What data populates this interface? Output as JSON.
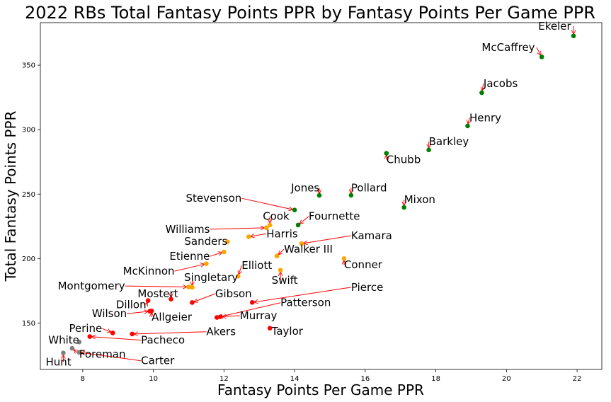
{
  "chart_data": {
    "type": "scatter",
    "title": "2022 RBs Total Fantasy Points PPR by Fantasy Points Per Game PPR",
    "xlabel": "Fantasy Points Per Game PPR",
    "ylabel": "Total Fantasy Points PPR",
    "xlim": [
      6.8,
      22.7
    ],
    "ylim": [
      114,
      383
    ],
    "xticks": [
      8,
      10,
      12,
      14,
      16,
      18,
      20,
      22
    ],
    "yticks": [
      150,
      200,
      250,
      300,
      350
    ],
    "grid": false,
    "colors": {
      "green": "#008000",
      "orange": "#ffa500",
      "red": "#ff0000",
      "gray": "#808080",
      "arrow": "#ff0000"
    },
    "points": [
      {
        "name": "Ekeler",
        "x": 21.9,
        "y": 372.7,
        "color": "green",
        "lx": 20.9,
        "ly": 377.5,
        "anchor": "start"
      },
      {
        "name": "McCaffrey",
        "x": 21.0,
        "y": 356.4,
        "color": "green",
        "lx": 19.3,
        "ly": 361,
        "anchor": "start"
      },
      {
        "name": "Jacobs",
        "x": 19.3,
        "y": 328.6,
        "color": "green",
        "lx": 19.35,
        "ly": 333,
        "anchor": "start"
      },
      {
        "name": "Henry",
        "x": 18.9,
        "y": 302.9,
        "color": "green",
        "lx": 18.95,
        "ly": 306.5,
        "anchor": "start"
      },
      {
        "name": "Barkley",
        "x": 17.8,
        "y": 284.3,
        "color": "green",
        "lx": 17.8,
        "ly": 288,
        "anchor": "start"
      },
      {
        "name": "Chubb",
        "x": 16.6,
        "y": 281.7,
        "color": "green",
        "lx": 16.6,
        "ly": 274,
        "anchor": "start"
      },
      {
        "name": "Jones",
        "x": 14.7,
        "y": 249.0,
        "color": "green",
        "lx": 13.9,
        "ly": 252,
        "anchor": "start"
      },
      {
        "name": "Pollard",
        "x": 15.6,
        "y": 249.1,
        "color": "green",
        "lx": 15.6,
        "ly": 252,
        "anchor": "start"
      },
      {
        "name": "Stevenson",
        "x": 14.0,
        "y": 237.7,
        "color": "green",
        "lx": 12.5,
        "ly": 244,
        "anchor": "end"
      },
      {
        "name": "Mixon",
        "x": 17.1,
        "y": 239.7,
        "color": "green",
        "lx": 17.1,
        "ly": 243,
        "anchor": "start"
      },
      {
        "name": "Cook",
        "x": 13.3,
        "y": 226.0,
        "color": "orange",
        "lx": 13.1,
        "ly": 230,
        "anchor": "start"
      },
      {
        "name": "Fournette",
        "x": 14.1,
        "y": 226.0,
        "color": "green",
        "lx": 14.4,
        "ly": 230,
        "anchor": "start"
      },
      {
        "name": "Williams",
        "x": 13.2,
        "y": 223.9,
        "color": "orange",
        "lx": 11.6,
        "ly": 220,
        "anchor": "end"
      },
      {
        "name": "Harris",
        "x": 12.7,
        "y": 216.9,
        "color": "orange",
        "lx": 13.2,
        "ly": 216.5,
        "anchor": "start"
      },
      {
        "name": "Kamara",
        "x": 14.2,
        "y": 211.6,
        "color": "orange",
        "lx": 15.6,
        "ly": 215,
        "anchor": "start"
      },
      {
        "name": "Sanders",
        "x": 12.1,
        "y": 213.0,
        "color": "orange",
        "lx": 12.1,
        "ly": 210.5,
        "anchor": "end"
      },
      {
        "name": "Walker III",
        "x": 13.5,
        "y": 202.0,
        "color": "orange",
        "lx": 13.7,
        "ly": 204.5,
        "anchor": "start"
      },
      {
        "name": "Etienne",
        "x": 12.0,
        "y": 205.2,
        "color": "orange",
        "lx": 11.6,
        "ly": 199,
        "anchor": "end"
      },
      {
        "name": "Conner",
        "x": 15.4,
        "y": 200.0,
        "color": "orange",
        "lx": 15.4,
        "ly": 192.5,
        "anchor": "start"
      },
      {
        "name": "McKinnon",
        "x": 11.5,
        "y": 196.0,
        "color": "orange",
        "lx": 10.6,
        "ly": 187.5,
        "anchor": "end"
      },
      {
        "name": "Elliott",
        "x": 12.4,
        "y": 186.3,
        "color": "orange",
        "lx": 12.5,
        "ly": 192,
        "anchor": "start"
      },
      {
        "name": "Swift",
        "x": 13.6,
        "y": 191.0,
        "color": "orange",
        "lx": 13.35,
        "ly": 180.5,
        "anchor": "start"
      },
      {
        "name": "Singletary",
        "x": 11.1,
        "y": 177.7,
        "color": "orange",
        "lx": 12.4,
        "ly": 182.5,
        "anchor": "end"
      },
      {
        "name": "Montgomery",
        "x": 11.0,
        "y": 178.0,
        "color": "orange",
        "lx": 9.2,
        "ly": 176,
        "anchor": "end"
      },
      {
        "name": "Pierce",
        "x": 12.8,
        "y": 166.0,
        "color": "red",
        "lx": 15.6,
        "ly": 175,
        "anchor": "start"
      },
      {
        "name": "Mostert",
        "x": 10.5,
        "y": 168.5,
        "color": "red",
        "lx": 10.7,
        "ly": 170,
        "anchor": "end"
      },
      {
        "name": "Gibson",
        "x": 11.1,
        "y": 165.9,
        "color": "red",
        "lx": 11.75,
        "ly": 170,
        "anchor": "start"
      },
      {
        "name": "Dillon",
        "x": 9.85,
        "y": 167.4,
        "color": "red",
        "lx": 9.8,
        "ly": 161.5,
        "anchor": "end"
      },
      {
        "name": "Patterson",
        "x": 11.8,
        "y": 154.3,
        "color": "red",
        "lx": 13.6,
        "ly": 163,
        "anchor": "start"
      },
      {
        "name": "Wilson",
        "x": 9.9,
        "y": 159.2,
        "color": "red",
        "lx": 9.25,
        "ly": 154.5,
        "anchor": "end"
      },
      {
        "name": "Allgeier",
        "x": 9.95,
        "y": 159.4,
        "color": "red",
        "lx": 9.95,
        "ly": 152,
        "anchor": "start"
      },
      {
        "name": "Murray",
        "x": 11.9,
        "y": 154.9,
        "color": "red",
        "lx": 12.45,
        "ly": 153,
        "anchor": "start"
      },
      {
        "name": "Taylor",
        "x": 13.3,
        "y": 146.0,
        "color": "red",
        "lx": 13.35,
        "ly": 141,
        "anchor": "start"
      },
      {
        "name": "Perine",
        "x": 8.85,
        "y": 142.3,
        "color": "red",
        "lx": 8.55,
        "ly": 143,
        "anchor": "end"
      },
      {
        "name": "Akers",
        "x": 9.4,
        "y": 141.5,
        "color": "red",
        "lx": 11.5,
        "ly": 140.5,
        "anchor": "start"
      },
      {
        "name": "Pacheco",
        "x": 8.2,
        "y": 139.5,
        "color": "red",
        "lx": 9.65,
        "ly": 134,
        "anchor": "start"
      },
      {
        "name": "White",
        "x": 7.9,
        "y": 135.3,
        "color": "gray",
        "lx": 7.9,
        "ly": 134,
        "anchor": "end"
      },
      {
        "name": "Foreman",
        "x": 7.7,
        "y": 130.4,
        "color": "gray",
        "lx": 7.9,
        "ly": 123,
        "anchor": "start"
      },
      {
        "name": "Carter",
        "x": 7.9,
        "y": 127.3,
        "color": "gray",
        "lx": 9.65,
        "ly": 118,
        "anchor": "start"
      },
      {
        "name": "Hunt",
        "x": 7.45,
        "y": 126.8,
        "color": "gray",
        "lx": 6.95,
        "ly": 117,
        "anchor": "start"
      }
    ]
  }
}
